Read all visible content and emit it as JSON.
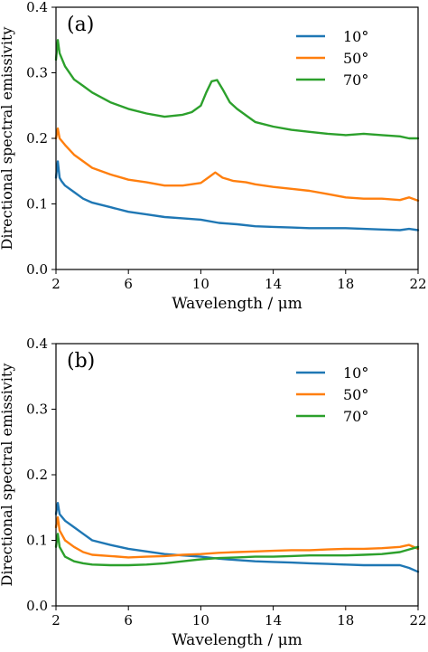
{
  "chart_data": [
    {
      "type": "line",
      "panel_label": "(a)",
      "xlabel": "Wavelength / μm",
      "ylabel": "Directional spectral emissivity",
      "xlim": [
        2,
        22
      ],
      "ylim": [
        0.0,
        0.4
      ],
      "xticks": [
        "2",
        "6",
        "10",
        "14",
        "18",
        "22"
      ],
      "yticks": [
        "0.0",
        "0.1",
        "0.2",
        "0.3",
        "0.4"
      ],
      "legend_position": "top-right",
      "series": [
        {
          "name": "10°",
          "color": "#1f77b4",
          "x": [
            2.0,
            2.1,
            2.2,
            2.3,
            2.5,
            3,
            3.5,
            4,
            5,
            6,
            7,
            8,
            9,
            9.5,
            10,
            11,
            12,
            13,
            14,
            15,
            16,
            17,
            18,
            19,
            20,
            21,
            21.5,
            22
          ],
          "y": [
            0.14,
            0.165,
            0.14,
            0.135,
            0.128,
            0.118,
            0.108,
            0.102,
            0.095,
            0.088,
            0.084,
            0.08,
            0.078,
            0.077,
            0.076,
            0.071,
            0.069,
            0.066,
            0.065,
            0.064,
            0.063,
            0.063,
            0.063,
            0.062,
            0.061,
            0.06,
            0.062,
            0.06
          ]
        },
        {
          "name": "50°",
          "color": "#ff7f0e",
          "x": [
            2.0,
            2.1,
            2.2,
            2.5,
            3,
            3.5,
            4,
            5,
            6,
            7,
            8,
            9,
            10,
            10.5,
            10.8,
            11.2,
            11.8,
            12.5,
            13,
            14,
            15,
            16,
            17,
            18,
            19,
            20,
            21,
            21.5,
            22
          ],
          "y": [
            0.2,
            0.215,
            0.2,
            0.19,
            0.175,
            0.165,
            0.155,
            0.145,
            0.137,
            0.133,
            0.128,
            0.128,
            0.132,
            0.142,
            0.148,
            0.14,
            0.135,
            0.133,
            0.13,
            0.126,
            0.123,
            0.12,
            0.115,
            0.11,
            0.108,
            0.108,
            0.106,
            0.11,
            0.105
          ]
        },
        {
          "name": "70°",
          "color": "#2ca02c",
          "x": [
            2.0,
            2.1,
            2.2,
            2.5,
            3,
            3.5,
            4,
            5,
            6,
            7,
            8,
            9,
            9.5,
            10,
            10.3,
            10.6,
            10.9,
            11.2,
            11.6,
            12,
            12.5,
            13,
            14,
            15,
            16,
            17,
            18,
            19,
            20,
            21,
            21.5,
            22
          ],
          "y": [
            0.32,
            0.35,
            0.33,
            0.31,
            0.29,
            0.28,
            0.27,
            0.255,
            0.245,
            0.238,
            0.233,
            0.236,
            0.24,
            0.25,
            0.27,
            0.287,
            0.289,
            0.275,
            0.255,
            0.245,
            0.235,
            0.225,
            0.218,
            0.213,
            0.21,
            0.207,
            0.205,
            0.207,
            0.205,
            0.203,
            0.2,
            0.2
          ]
        }
      ]
    },
    {
      "type": "line",
      "panel_label": "(b)",
      "xlabel": "Wavelength / μm",
      "ylabel": "Directional spectral emissivity",
      "xlim": [
        2,
        22
      ],
      "ylim": [
        0.0,
        0.4
      ],
      "xticks": [
        "2",
        "6",
        "10",
        "14",
        "18",
        "22"
      ],
      "yticks": [
        "0.0",
        "0.1",
        "0.2",
        "0.3",
        "0.4"
      ],
      "legend_position": "top-right",
      "series": [
        {
          "name": "10°",
          "color": "#1f77b4",
          "x": [
            2.0,
            2.1,
            2.2,
            2.5,
            3,
            3.5,
            4,
            5,
            6,
            7,
            8,
            9,
            10,
            11,
            12,
            13,
            14,
            15,
            16,
            17,
            18,
            19,
            20,
            21,
            21.5,
            22
          ],
          "y": [
            0.14,
            0.157,
            0.14,
            0.13,
            0.12,
            0.11,
            0.1,
            0.093,
            0.087,
            0.083,
            0.079,
            0.077,
            0.075,
            0.072,
            0.07,
            0.068,
            0.067,
            0.066,
            0.065,
            0.064,
            0.063,
            0.062,
            0.062,
            0.062,
            0.058,
            0.052
          ]
        },
        {
          "name": "50°",
          "color": "#ff7f0e",
          "x": [
            2.0,
            2.1,
            2.2,
            2.5,
            3,
            3.5,
            4,
            5,
            6,
            7,
            8,
            9,
            10,
            11,
            12,
            13,
            14,
            15,
            16,
            17,
            18,
            19,
            20,
            21,
            21.5,
            22
          ],
          "y": [
            0.12,
            0.135,
            0.115,
            0.1,
            0.09,
            0.082,
            0.078,
            0.076,
            0.074,
            0.075,
            0.076,
            0.078,
            0.079,
            0.081,
            0.082,
            0.083,
            0.084,
            0.085,
            0.085,
            0.086,
            0.087,
            0.087,
            0.088,
            0.09,
            0.093,
            0.087
          ]
        },
        {
          "name": "70°",
          "color": "#2ca02c",
          "x": [
            2.0,
            2.1,
            2.2,
            2.5,
            3,
            3.5,
            4,
            5,
            6,
            7,
            8,
            9,
            10,
            11,
            12,
            13,
            14,
            15,
            16,
            17,
            18,
            19,
            20,
            21,
            21.5,
            22
          ],
          "y": [
            0.09,
            0.11,
            0.09,
            0.075,
            0.068,
            0.065,
            0.063,
            0.062,
            0.062,
            0.063,
            0.065,
            0.068,
            0.071,
            0.073,
            0.074,
            0.075,
            0.075,
            0.076,
            0.077,
            0.077,
            0.077,
            0.078,
            0.079,
            0.082,
            0.086,
            0.09
          ]
        }
      ]
    }
  ]
}
